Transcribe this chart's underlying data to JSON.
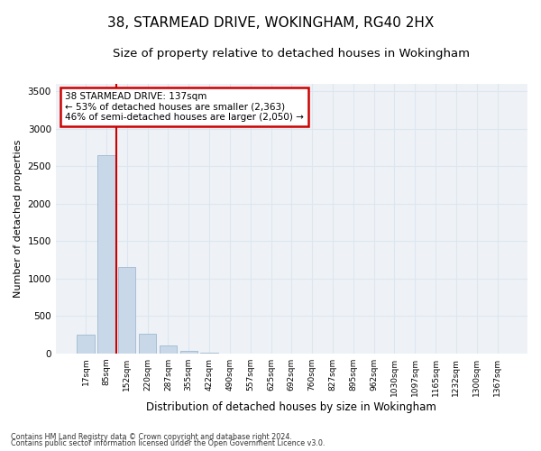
{
  "title": "38, STARMEAD DRIVE, WOKINGHAM, RG40 2HX",
  "subtitle": "Size of property relative to detached houses in Wokingham",
  "xlabel": "Distribution of detached houses by size in Wokingham",
  "ylabel": "Number of detached properties",
  "bar_labels": [
    "17sqm",
    "85sqm",
    "152sqm",
    "220sqm",
    "287sqm",
    "355sqm",
    "422sqm",
    "490sqm",
    "557sqm",
    "625sqm",
    "692sqm",
    "760sqm",
    "827sqm",
    "895sqm",
    "962sqm",
    "1030sqm",
    "1097sqm",
    "1165sqm",
    "1232sqm",
    "1300sqm",
    "1367sqm"
  ],
  "bar_values": [
    250,
    2650,
    1150,
    270,
    105,
    40,
    10,
    0,
    0,
    0,
    0,
    0,
    0,
    0,
    0,
    0,
    0,
    0,
    0,
    0,
    0
  ],
  "bar_color": "#c8d8e8",
  "bar_edge_color": "#a0b8d0",
  "property_line_x": 1.5,
  "property_line_color": "#cc0000",
  "ylim": [
    0,
    3600
  ],
  "yticks": [
    0,
    500,
    1000,
    1500,
    2000,
    2500,
    3000,
    3500
  ],
  "annotation_text": "38 STARMEAD DRIVE: 137sqm\n← 53% of detached houses are smaller (2,363)\n46% of semi-detached houses are larger (2,050) →",
  "footnote1": "Contains HM Land Registry data © Crown copyright and database right 2024.",
  "footnote2": "Contains public sector information licensed under the Open Government Licence v3.0.",
  "grid_color": "#dce6f0",
  "bg_color": "#eef2f7",
  "title_fontsize": 11,
  "subtitle_fontsize": 9.5,
  "ylabel_fontsize": 8,
  "xlabel_fontsize": 8.5
}
